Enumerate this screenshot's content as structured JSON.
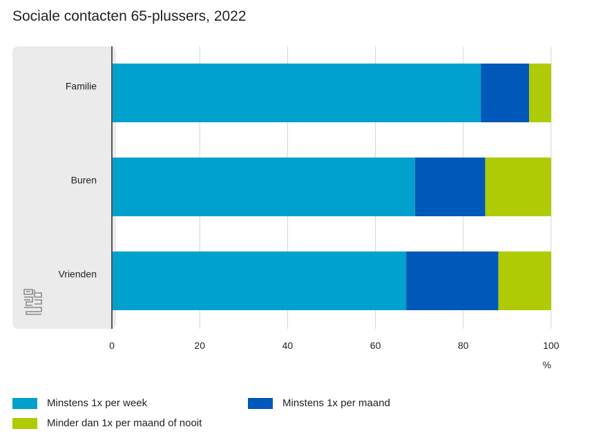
{
  "title": "Sociale contacten 65-plussers, 2022",
  "logo_icon": "cbs-logo-icon",
  "chart_data": {
    "type": "bar",
    "orientation": "horizontal",
    "stacked": true,
    "categories": [
      "Familie",
      "Buren",
      "Vrienden"
    ],
    "series": [
      {
        "name": "Minstens 1x per week",
        "color": "#00a1cd",
        "values": [
          84,
          69,
          67
        ]
      },
      {
        "name": "Minstens 1x per maand",
        "color": "#0058b8",
        "values": [
          11,
          16,
          21
        ]
      },
      {
        "name": "Minder dan 1x per maand of nooit",
        "color": "#afcb05",
        "values": [
          5,
          15,
          12
        ]
      }
    ],
    "xlim": [
      0,
      100
    ],
    "xticks": [
      "0",
      "20",
      "40",
      "60",
      "80",
      "100"
    ],
    "xunit": "%",
    "grid": true,
    "legend_position": "bottom"
  }
}
